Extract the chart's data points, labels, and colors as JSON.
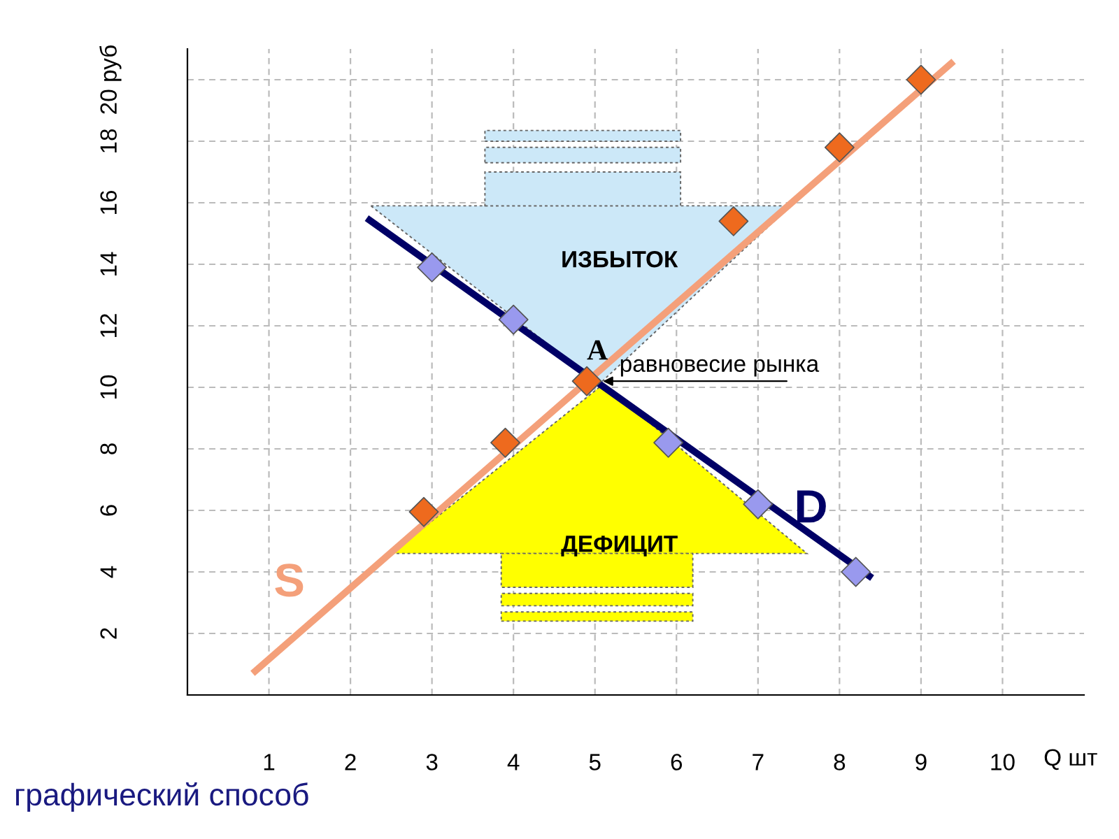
{
  "chart_data": {
    "type": "line",
    "xlabel": "Q шт",
    "xlim": [
      0,
      11
    ],
    "ylim": [
      0,
      21
    ],
    "xticks": [
      1,
      2,
      3,
      4,
      5,
      6,
      7,
      8,
      9,
      10
    ],
    "yticks": [
      2,
      4,
      6,
      8,
      10,
      12,
      14,
      16,
      18,
      {
        "value": 20,
        "label": "20 руб"
      }
    ],
    "grid": true,
    "series": [
      {
        "name": "S",
        "color": "#f4a07a",
        "x": [
          0.8,
          9.4
        ],
        "values": [
          0.7,
          20.6
        ]
      },
      {
        "name": "D",
        "color": "#000066",
        "x": [
          2.2,
          8.4
        ],
        "values": [
          15.5,
          3.8
        ]
      },
      {
        "type": "scatter",
        "marker": "diamond",
        "color": "#ee6a1e",
        "x": [
          2.9,
          3.9,
          4.9,
          6.7,
          8.0,
          9.0
        ],
        "values": [
          5.95,
          8.2,
          10.2,
          15.4,
          17.8,
          20.0
        ]
      },
      {
        "type": "scatter",
        "marker": "diamond",
        "color": "#9999ee",
        "x": [
          3.0,
          4.0,
          5.9,
          7.0,
          8.2
        ],
        "values": [
          13.9,
          12.2,
          8.2,
          6.2,
          4.0
        ]
      }
    ],
    "annotations": [
      "ИЗБЫТОК",
      "ДЕФИЦИТ",
      {
        "text": "A",
        "x": 4.9,
        "y": 10.2
      },
      {
        "text": "равновесие рынка",
        "x": 4.9,
        "y": 10.2
      },
      "графический способ"
    ]
  }
}
